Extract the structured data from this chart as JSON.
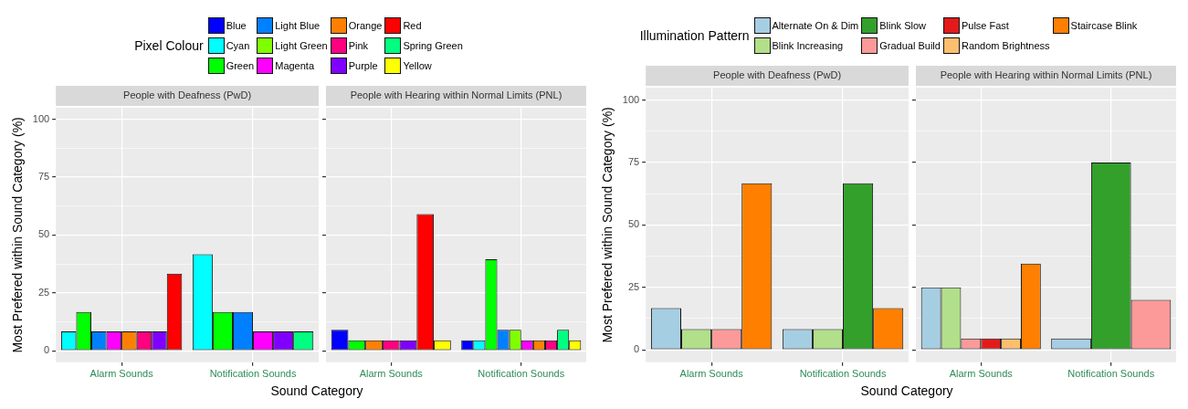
{
  "chart_data": [
    {
      "type": "bar",
      "title": "People with Deafness (PwD)",
      "xlabel": "Sound Category",
      "ylabel": "Most Prefered within Sound Category (%)",
      "legend_title": "Pixel Colour",
      "legend": "top",
      "grid": true,
      "categories": [
        "Alarm Sounds",
        "Notification Sounds"
      ],
      "ylim": [
        -5,
        105
      ],
      "yticks": [
        0,
        {
          "value": 12.5,
          "label": null
        },
        25,
        {
          "value": 37.5,
          "label": null
        },
        50,
        {
          "value": 62.5,
          "label": null
        },
        75,
        {
          "value": 87.5,
          "label": null
        },
        100
      ],
      "series": [
        {
          "name": "Blue",
          "color": "#0000ff",
          "values": [
            null,
            null
          ]
        },
        {
          "name": "Cyan",
          "color": "#00ffff",
          "values": [
            8.3,
            41.7
          ]
        },
        {
          "name": "Green",
          "color": "#00ff00",
          "values": [
            16.7,
            16.7
          ]
        },
        {
          "name": "Light Blue",
          "color": "#0080ff",
          "values": [
            8.3,
            16.7
          ]
        },
        {
          "name": "Light Green",
          "color": "#80ff00",
          "values": [
            null,
            null
          ]
        },
        {
          "name": "Magenta",
          "color": "#ff00ff",
          "values": [
            8.3,
            8.3
          ]
        },
        {
          "name": "Orange",
          "color": "#ff8000",
          "values": [
            8.3,
            null
          ]
        },
        {
          "name": "Pink",
          "color": "#ff0080",
          "values": [
            8.3,
            null
          ]
        },
        {
          "name": "Purple",
          "color": "#8000ff",
          "values": [
            8.3,
            8.3
          ]
        },
        {
          "name": "Red",
          "color": "#ff0000",
          "values": [
            33.3,
            null
          ]
        },
        {
          "name": "Spring Green",
          "color": "#00ff80",
          "values": [
            null,
            8.3
          ]
        },
        {
          "name": "Yellow",
          "color": "#ffff00",
          "values": [
            null,
            null
          ]
        }
      ]
    },
    {
      "type": "bar",
      "title": "People with Hearing within Normal Limits (PNL)",
      "grid": true,
      "tick_labels": "x",
      "categories": [
        "Alarm Sounds",
        "Notification Sounds"
      ],
      "ylim": [
        -5,
        105
      ],
      "yticks": [
        0,
        {
          "value": 12.5,
          "label": null
        },
        25,
        {
          "value": 37.5,
          "label": null
        },
        50,
        {
          "value": 62.5,
          "label": null
        },
        75,
        {
          "value": 87.5,
          "label": null
        },
        100
      ],
      "series": [
        {
          "color": "#0000ff",
          "values": [
            9,
            4.5
          ]
        },
        {
          "color": "#00ffff",
          "values": [
            null,
            4.5
          ]
        },
        {
          "color": "#00ff00",
          "values": [
            4.5,
            39.5
          ]
        },
        {
          "color": "#0080ff",
          "values": [
            null,
            9
          ]
        },
        {
          "color": "#80ff00",
          "values": [
            null,
            9
          ]
        },
        {
          "color": "#ff00ff",
          "values": [
            null,
            4.5
          ]
        },
        {
          "color": "#ff8000",
          "values": [
            4.5,
            4.5
          ]
        },
        {
          "color": "#ff0080",
          "values": [
            4.5,
            4.5
          ]
        },
        {
          "color": "#8000ff",
          "values": [
            4.5,
            null
          ]
        },
        {
          "color": "#ff0000",
          "values": [
            59,
            null
          ]
        },
        {
          "color": "#00ff80",
          "values": [
            null,
            9
          ]
        },
        {
          "color": "#ffff00",
          "values": [
            4.5,
            4.5
          ]
        }
      ]
    },
    {
      "type": "bar",
      "title": "People with Deafness (PwD)",
      "xlabel": "Sound Category",
      "ylabel": "Most Prefered within Sound Category (%)",
      "legend_title": "Illumination Pattern",
      "legend": "top",
      "grid": true,
      "categories": [
        "Alarm Sounds",
        "Notification Sounds"
      ],
      "ylim": [
        -5,
        105
      ],
      "yticks": [
        0,
        {
          "value": 12.5,
          "label": null
        },
        25,
        {
          "value": 37.5,
          "label": null
        },
        50,
        {
          "value": 62.5,
          "label": null
        },
        75,
        {
          "value": 87.5,
          "label": null
        },
        100
      ],
      "series": [
        {
          "name": "Alternate On & Dim",
          "color": "#a6cee3",
          "values": [
            16.7,
            8.3
          ]
        },
        {
          "name": "Blink Increasing",
          "color": "#b2df8a",
          "values": [
            8.3,
            8.3
          ]
        },
        {
          "name": "Blink Slow",
          "color": "#33a02c",
          "values": [
            null,
            66.7
          ]
        },
        {
          "name": "Gradual Build",
          "color": "#fb9a99",
          "values": [
            8.3,
            null
          ]
        },
        {
          "name": "Pulse Fast",
          "color": "#e31a1c",
          "values": [
            null,
            null
          ]
        },
        {
          "name": "Random Brightness",
          "color": "#fdbf6f",
          "values": [
            null,
            null
          ]
        },
        {
          "name": "Staircase Blink",
          "color": "#ff7f00",
          "values": [
            66.7,
            16.7
          ]
        }
      ]
    },
    {
      "type": "bar",
      "title": "People with Hearing within Normal Limits (PNL)",
      "grid": true,
      "tick_labels": "x",
      "categories": [
        "Alarm Sounds",
        "Notification Sounds"
      ],
      "ylim": [
        -5,
        105
      ],
      "yticks": [
        0,
        {
          "value": 12.5,
          "label": null
        },
        25,
        {
          "value": 37.5,
          "label": null
        },
        50,
        {
          "value": 62.5,
          "label": null
        },
        75,
        {
          "value": 87.5,
          "label": null
        },
        100
      ],
      "series": [
        {
          "color": "#a6cee3",
          "values": [
            25,
            4.5
          ]
        },
        {
          "color": "#b2df8a",
          "values": [
            25,
            null
          ]
        },
        {
          "color": "#33a02c",
          "values": [
            null,
            75
          ]
        },
        {
          "color": "#fb9a99",
          "values": [
            4.5,
            20
          ]
        },
        {
          "color": "#e31a1c",
          "values": [
            4.5,
            null
          ]
        },
        {
          "color": "#fdbf6f",
          "values": [
            4.5,
            null
          ]
        },
        {
          "color": "#ff7f00",
          "values": [
            34.5,
            null
          ]
        }
      ]
    }
  ]
}
